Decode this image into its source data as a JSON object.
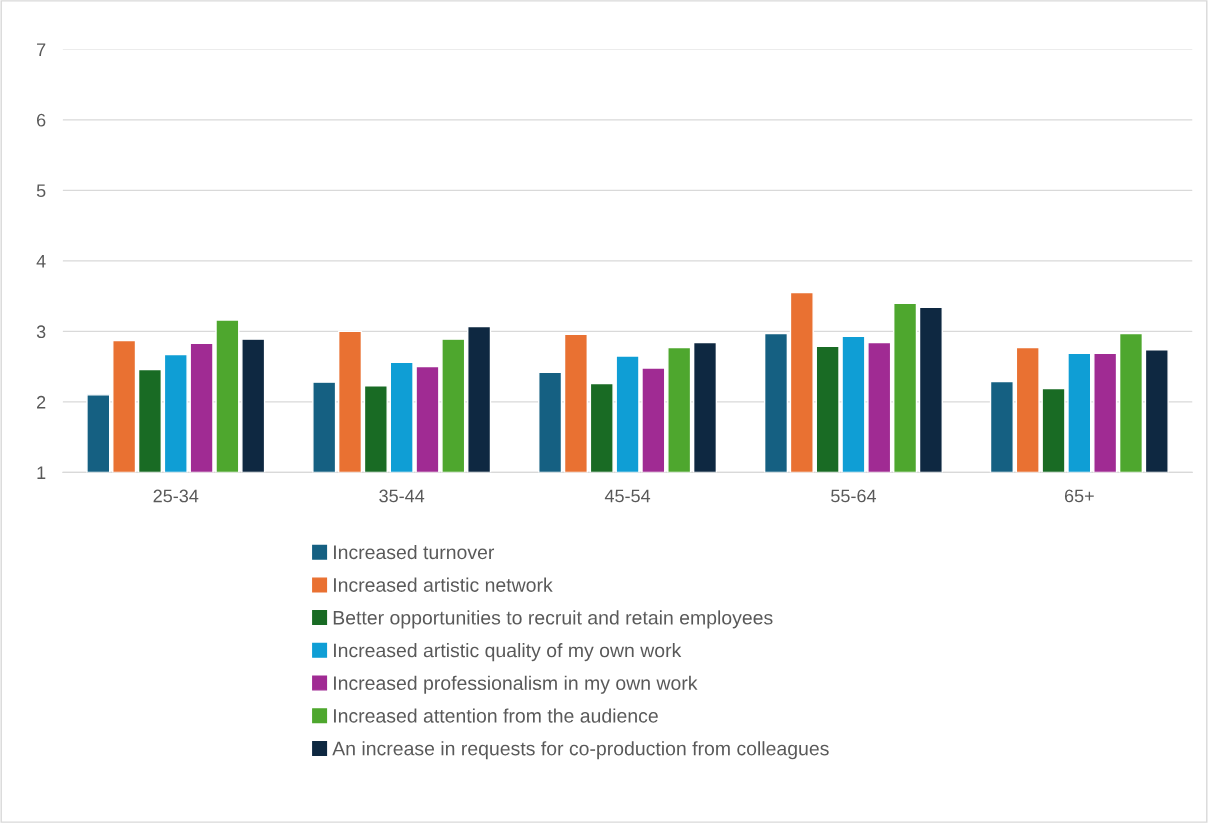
{
  "chart_data": {
    "type": "bar",
    "categories": [
      "25-34",
      "35-44",
      "45-54",
      "55-64",
      "65+"
    ],
    "series": [
      {
        "name": "Increased turnover",
        "color": "#156082",
        "values": [
          2.1,
          2.28,
          2.42,
          2.97,
          2.29
        ]
      },
      {
        "name": "Increased artistic network",
        "color": "#e97132",
        "values": [
          2.87,
          3.0,
          2.96,
          3.55,
          2.77
        ]
      },
      {
        "name": "Better opportunities to recruit and retain employees",
        "color": "#196b24",
        "values": [
          2.46,
          2.23,
          2.26,
          2.79,
          2.19
        ]
      },
      {
        "name": "Increased artistic quality of my own work",
        "color": "#0f9ed5",
        "values": [
          2.67,
          2.56,
          2.65,
          2.93,
          2.69
        ]
      },
      {
        "name": "Increased professionalism in my own work",
        "color": "#a02b93",
        "values": [
          2.83,
          2.5,
          2.48,
          2.84,
          2.69
        ]
      },
      {
        "name": "Increased attention from the audience",
        "color": "#4ea72e",
        "values": [
          3.16,
          2.89,
          2.77,
          3.4,
          2.97
        ]
      },
      {
        "name": "An increase in requests for co-production from colleagues",
        "color": "#0e2841",
        "values": [
          2.89,
          3.07,
          2.84,
          3.34,
          2.74
        ]
      }
    ],
    "ylim": [
      1,
      7
    ],
    "yticks": [
      1,
      2,
      3,
      4,
      5,
      6,
      7
    ],
    "grid": "y",
    "legend": "bottom"
  }
}
